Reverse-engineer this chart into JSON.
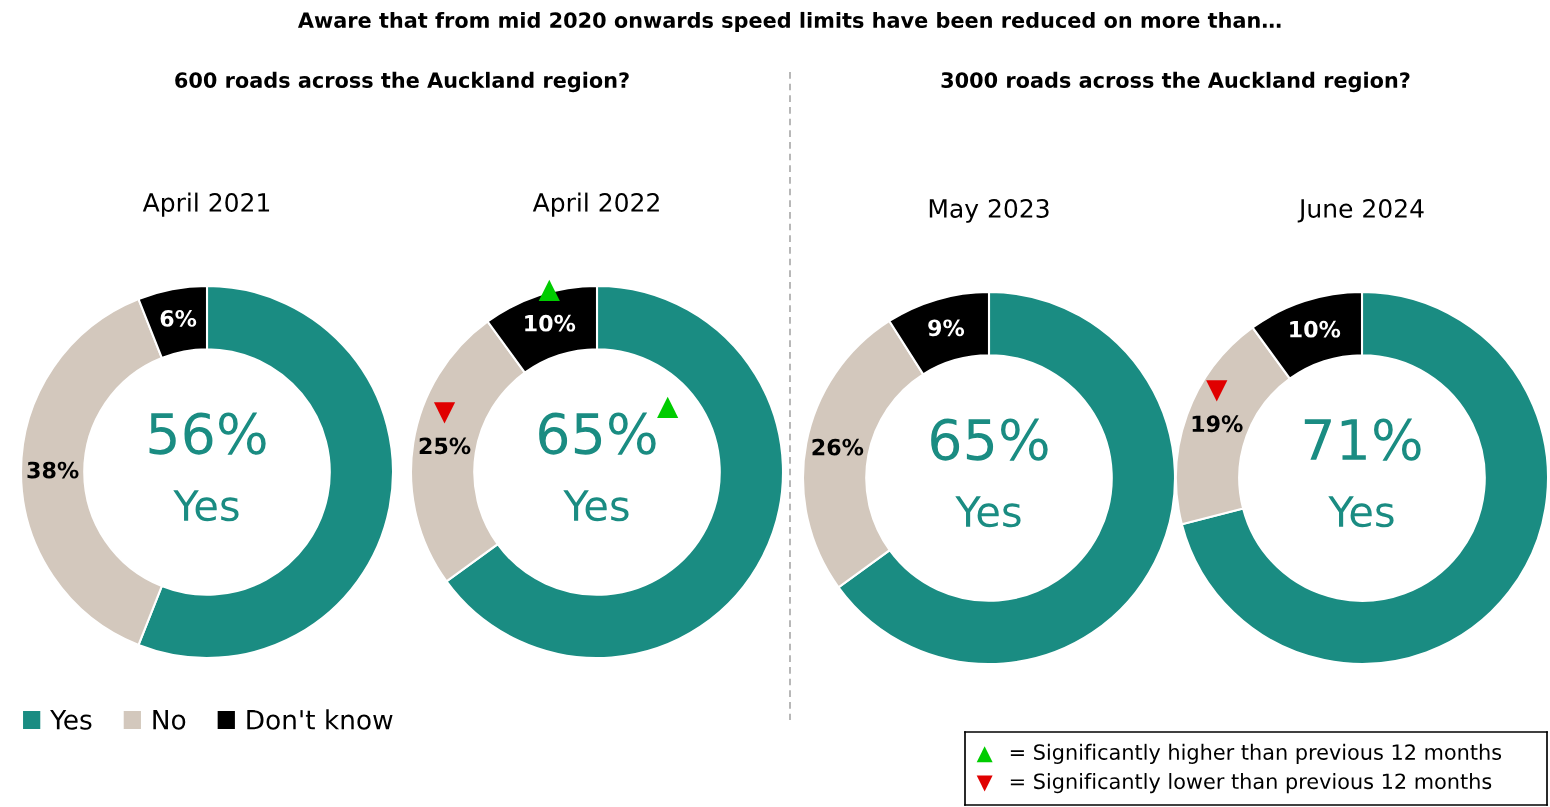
{
  "chart_data": [
    {
      "type": "donut",
      "title": "Aware that from mid 2020 onwards speed limits have been reduced on more than…",
      "subtitle": "600 roads across the Auckland region?",
      "xlabel": "April 2021",
      "categories": [
        "Yes",
        "No",
        "Don't know"
      ],
      "values": [
        56,
        38,
        6
      ],
      "colors": [
        "#1a8c82",
        "#d3c8bd",
        "#000000"
      ],
      "value_labels": [
        "56%",
        "38%",
        "6%"
      ],
      "annotations": [
        "Yes"
      ],
      "legend": "bottom left"
    },
    {
      "type": "donut",
      "xlabel": "April 2022",
      "categories": [
        null,
        null,
        null
      ],
      "values": [
        65,
        25,
        10
      ],
      "colors": [
        "#1a8c82",
        "#d3c8bd",
        "#000000"
      ],
      "value_labels": [
        "▲\n65%",
        "▼\n25%",
        "▲\n10%"
      ],
      "annotations": [
        "Yes"
      ]
    },
    {
      "type": "donut",
      "subtitle": "3000 roads across the Auckland region?",
      "xlabel": "May 2023",
      "categories": [
        null,
        null,
        null
      ],
      "values": [
        65,
        26,
        9
      ],
      "colors": [
        "#1a8c82",
        "#d3c8bd",
        "#000000"
      ],
      "value_labels": [
        "65%",
        "26%",
        "9%"
      ],
      "annotations": [
        "Yes"
      ]
    },
    {
      "type": "donut",
      "xlabel": "June 2024",
      "categories": [
        null,
        null,
        null
      ],
      "values": [
        71,
        19,
        10
      ],
      "colors": [
        "#1a8c82",
        "#d3c8bd",
        "#000000"
      ],
      "value_labels": [
        "71%",
        "▼\n19%",
        "10%"
      ],
      "annotations": [
        "Yes"
      ]
    },
    {
      "type": "other",
      "annotations": [
        "▲ = Significantly higher than previous 12 months",
        "▼ = Significantly lower than previous 12 months"
      ]
    }
  ]
}
